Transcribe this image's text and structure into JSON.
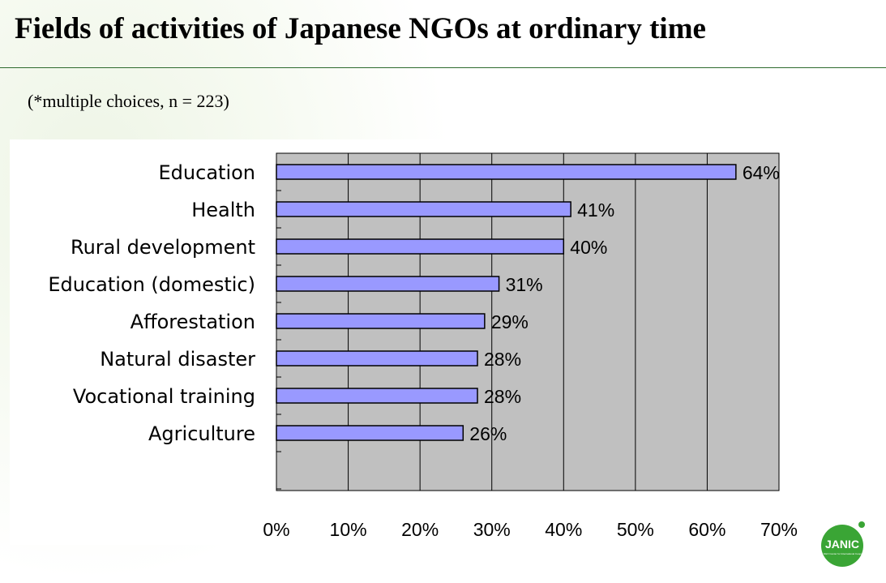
{
  "title": "Fields of activities of Japanese NGOs at ordinary time",
  "subtitle": "(*multiple choices, n = 223)",
  "logo": {
    "text": "JANIC",
    "tagline": "Japan NGO Center for International Cooperation",
    "color": "#3aa535",
    "dot_color": "#3aa535"
  },
  "colors": {
    "bar_fill": "#9999ff",
    "bar_stroke": "#000000",
    "plot_bg": "#c0c0c0",
    "grid": "#000000"
  },
  "chart_data": {
    "type": "bar",
    "orientation": "horizontal",
    "categories": [
      "Education",
      "Health",
      "Rural development",
      "Education (domestic)",
      "Afforestation",
      "Natural disaster",
      "Vocational training",
      "Agriculture"
    ],
    "values": [
      64,
      41,
      40,
      31,
      29,
      28,
      28,
      26
    ],
    "value_labels": [
      "64%",
      "41%",
      "40%",
      "31%",
      "29%",
      "28%",
      "28%",
      "26%"
    ],
    "xlim": [
      0,
      70
    ],
    "xticks": [
      0,
      10,
      20,
      30,
      40,
      50,
      60,
      70
    ],
    "xtick_labels": [
      "0%",
      "10%",
      "20%",
      "30%",
      "40%",
      "50%",
      "60%",
      "70%"
    ],
    "grid": true,
    "legend": false
  }
}
